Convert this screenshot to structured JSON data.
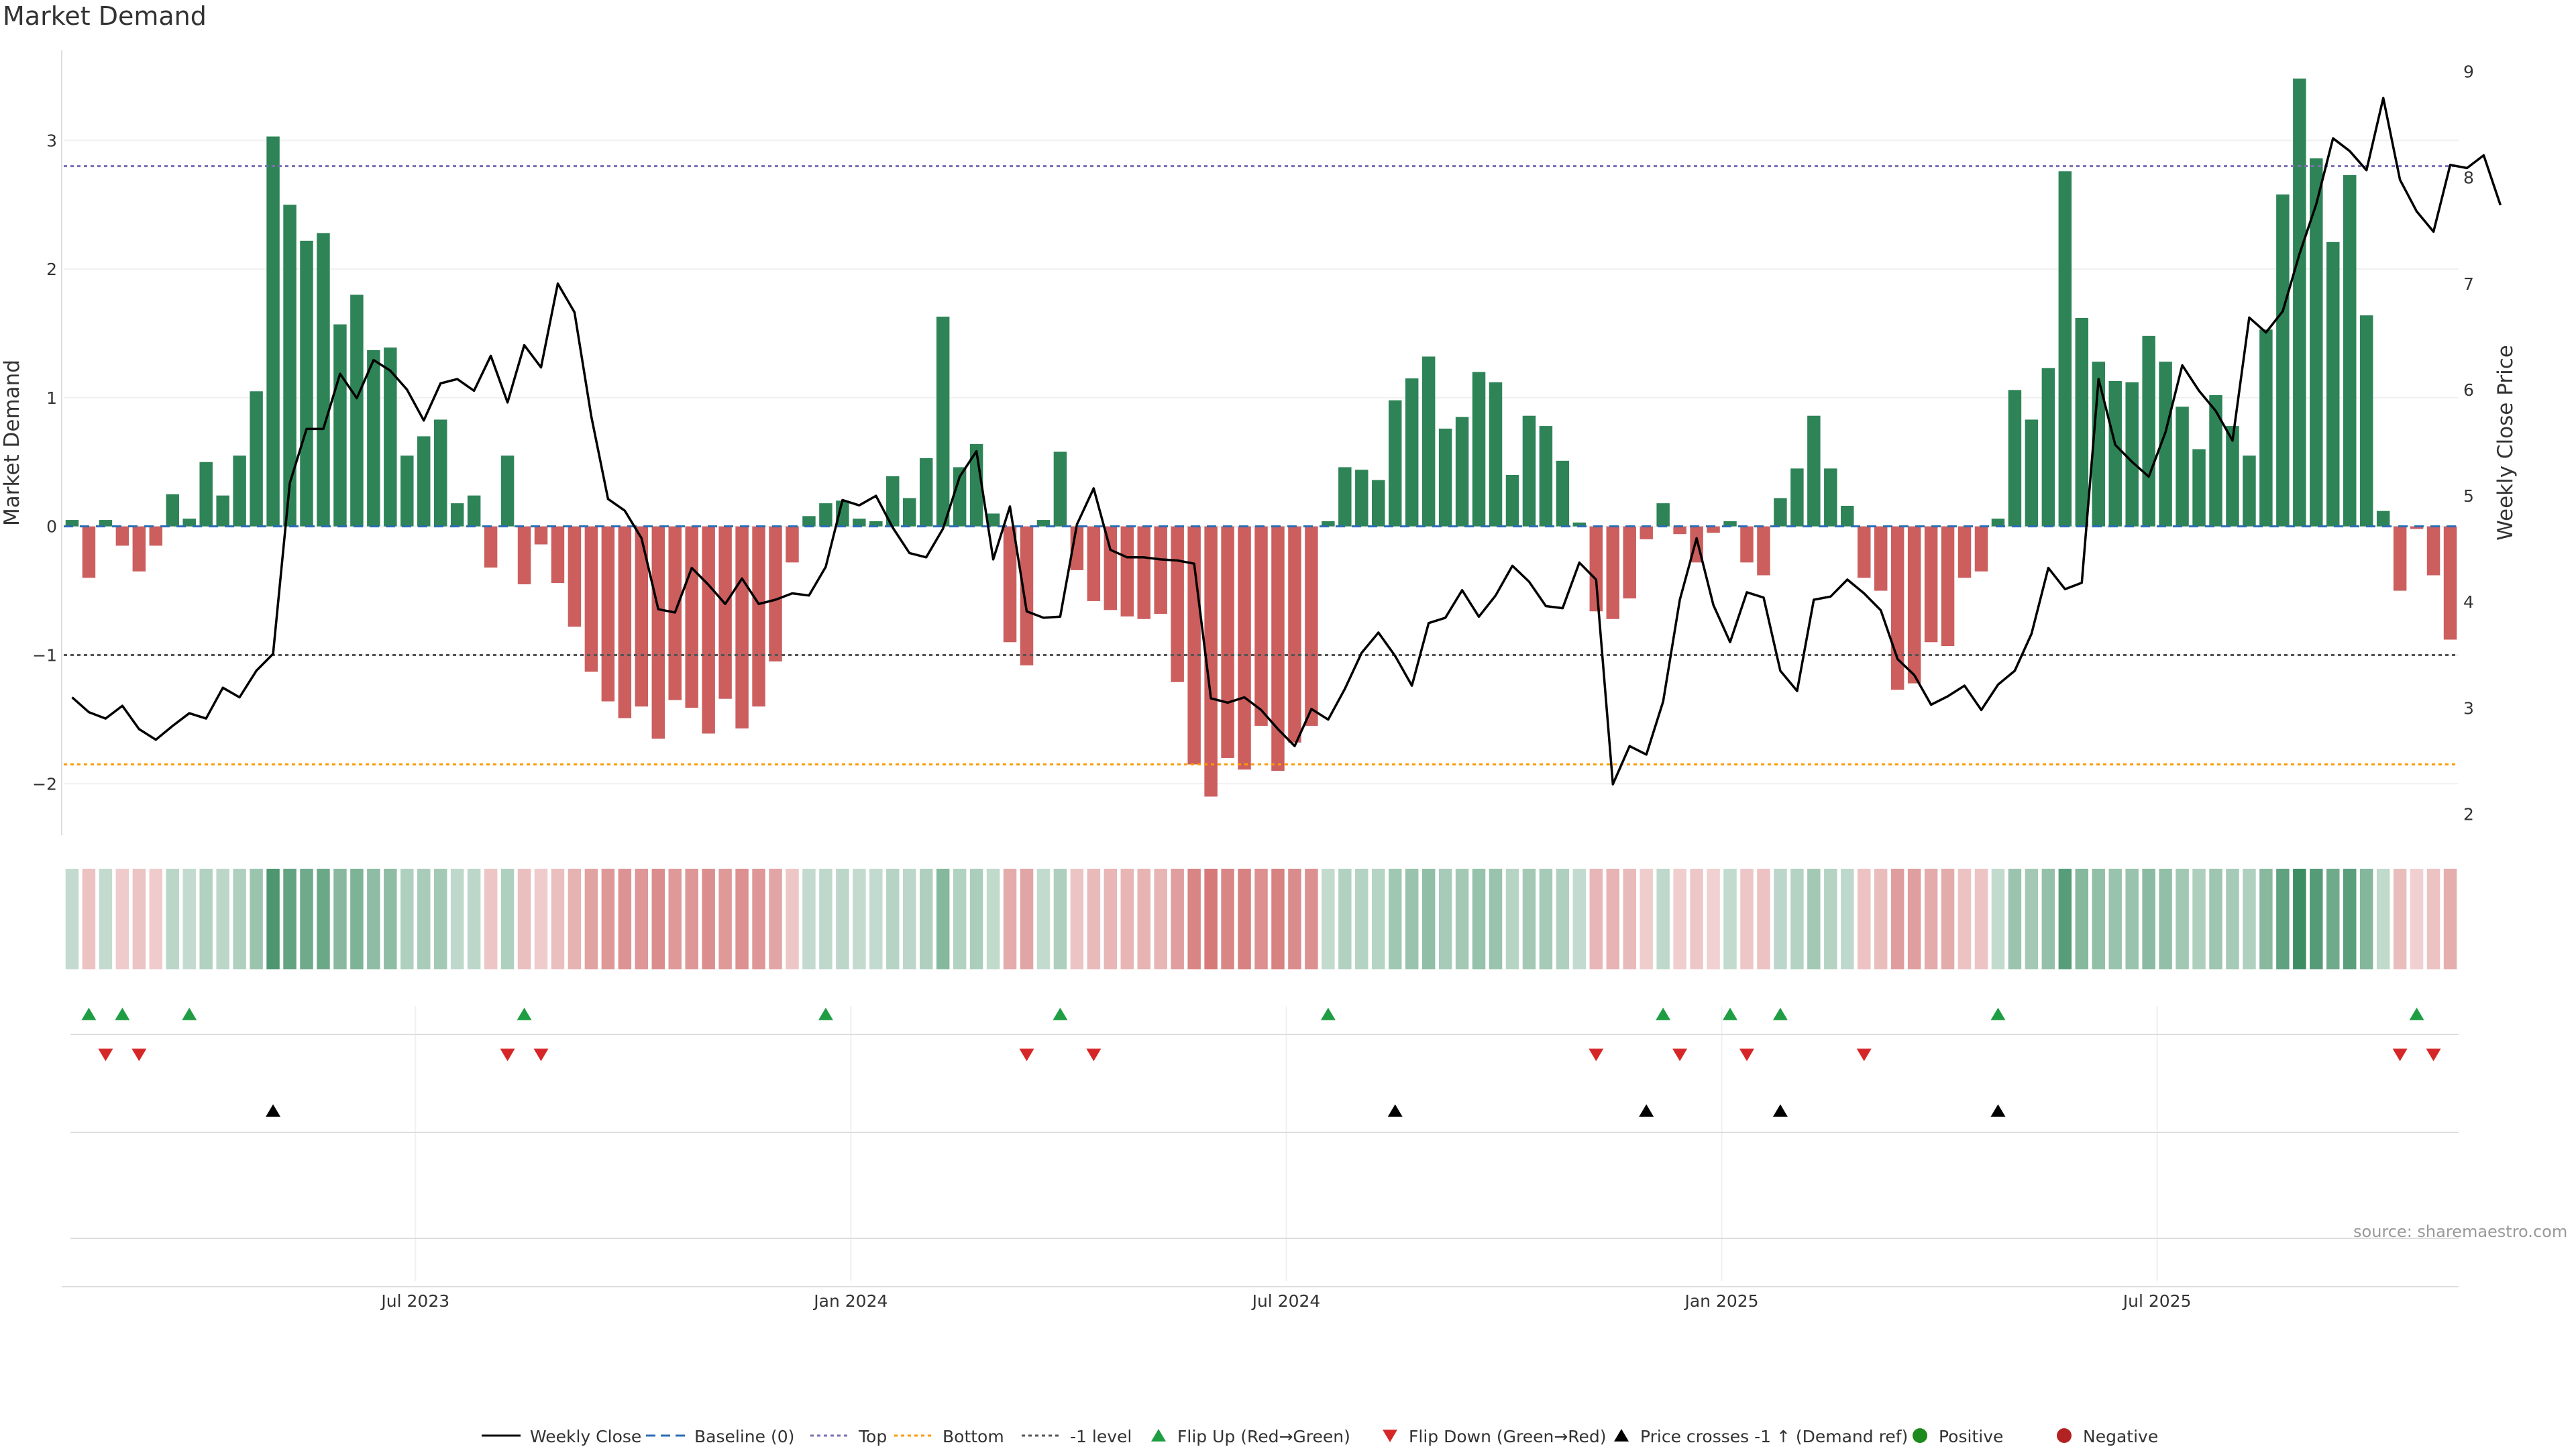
{
  "chart_data": {
    "type": "bar",
    "title": "Market Demand",
    "source": "source: sharemaestro.com",
    "ylabel": "Market Demand",
    "y2label": "Weekly Close Price",
    "ylim": [
      -2.4,
      3.7
    ],
    "y2lim": [
      1.8,
      9.2
    ],
    "yticks": [
      "3",
      "2",
      "1",
      "0",
      "−1",
      "−2"
    ],
    "y2ticks": [
      "9",
      "8",
      "7",
      "6",
      "5",
      "4",
      "3",
      "2"
    ],
    "xticks": [
      "Jul 2023",
      "Jan 2024",
      "Jul 2024",
      "Jan 2025",
      "Jul 2025"
    ],
    "xtick_positions_week": [
      21,
      47,
      73,
      99,
      125
    ],
    "reference_levels": {
      "top": 2.8,
      "bottom": -1.85,
      "minus_one": -1.0,
      "baseline": 0
    },
    "demand": [
      0.05,
      -0.4,
      0.05,
      -0.15,
      -0.35,
      -0.15,
      0.25,
      0.06,
      0.5,
      0.24,
      0.55,
      1.05,
      3.03,
      2.5,
      2.22,
      2.28,
      1.57,
      1.8,
      1.37,
      1.39,
      0.55,
      0.7,
      0.83,
      0.18,
      0.24,
      -0.32,
      0.55,
      -0.45,
      -0.14,
      -0.44,
      -0.78,
      -1.13,
      -1.36,
      -1.49,
      -1.4,
      -1.65,
      -1.35,
      -1.41,
      -1.61,
      -1.34,
      -1.57,
      -1.4,
      -1.05,
      -0.28,
      0.08,
      0.18,
      0.2,
      0.06,
      0.04,
      0.39,
      0.22,
      0.53,
      1.63,
      0.46,
      0.64,
      0.1,
      -0.9,
      -1.08,
      0.05,
      0.58,
      -0.34,
      -0.58,
      -0.65,
      -0.7,
      -0.72,
      -0.68,
      -1.21,
      -1.85,
      -2.1,
      -1.8,
      -1.89,
      -1.55,
      -1.9,
      -1.68,
      -1.55,
      0.04,
      0.46,
      0.44,
      0.36,
      0.98,
      1.15,
      1.32,
      0.76,
      0.85,
      1.2,
      1.12,
      0.4,
      0.86,
      0.78,
      0.51,
      0.03,
      -0.66,
      -0.72,
      -0.56,
      -0.1,
      0.18,
      -0.06,
      -0.28,
      -0.05,
      0.04,
      -0.28,
      -0.38,
      0.22,
      0.45,
      0.86,
      0.45,
      0.16,
      -0.4,
      -0.5,
      -1.27,
      -1.22,
      -0.9,
      -0.93,
      -0.4,
      -0.35,
      0.06,
      1.06,
      0.83,
      1.23,
      2.76,
      1.62,
      1.28,
      1.13,
      1.12,
      1.48,
      1.28,
      0.93,
      0.6,
      1.02,
      0.78,
      0.55,
      1.53,
      2.58,
      3.48,
      2.86,
      2.21,
      2.73,
      1.64,
      0.12,
      -0.5,
      -0.02,
      -0.38,
      -0.88
    ],
    "weekly_close": [
      3.1,
      2.96,
      2.9,
      3.02,
      2.8,
      2.7,
      2.83,
      2.95,
      2.9,
      3.19,
      3.1,
      3.35,
      3.51,
      5.12,
      5.63,
      5.63,
      6.15,
      5.92,
      6.28,
      6.18,
      6.0,
      5.71,
      6.06,
      6.1,
      5.99,
      6.32,
      5.88,
      6.42,
      6.21,
      7.0,
      6.73,
      5.75,
      4.97,
      4.86,
      4.6,
      3.93,
      3.9,
      4.32,
      4.16,
      3.98,
      4.22,
      3.98,
      4.02,
      4.08,
      4.06,
      4.33,
      4.96,
      4.91,
      5.0,
      4.7,
      4.46,
      4.42,
      4.69,
      5.18,
      5.42,
      4.4,
      4.9,
      3.91,
      3.85,
      3.86,
      4.73,
      5.07,
      4.49,
      4.42,
      4.42,
      4.4,
      4.39,
      4.36,
      3.09,
      3.05,
      3.1,
      2.98,
      2.8,
      2.64,
      2.99,
      2.89,
      3.18,
      3.52,
      3.71,
      3.49,
      3.21,
      3.8,
      3.85,
      4.11,
      3.86,
      4.06,
      4.34,
      4.19,
      3.96,
      3.94,
      4.37,
      4.21,
      2.28,
      2.64,
      2.56,
      3.06,
      4.02,
      4.6,
      3.97,
      3.62,
      4.09,
      4.04,
      3.35,
      3.16,
      4.02,
      4.05,
      4.21,
      4.08,
      3.92,
      3.46,
      3.31,
      3.03,
      3.11,
      3.21,
      2.98,
      3.22,
      3.35,
      3.7,
      4.32,
      4.12,
      4.18,
      6.1,
      5.48,
      5.32,
      5.18,
      5.6,
      6.23,
      5.99,
      5.8,
      5.52,
      6.68,
      6.54,
      6.74,
      7.28,
      7.75,
      8.37,
      8.25,
      8.07,
      8.75,
      7.98,
      7.68,
      7.49,
      8.12,
      8.09,
      8.21,
      7.74
    ],
    "flip_up_weeks": [
      1,
      3,
      7,
      27,
      45,
      59,
      75,
      95,
      99,
      102,
      115,
      140
    ],
    "flip_down_weeks": [
      2,
      4,
      26,
      28,
      57,
      61,
      91,
      96,
      100,
      107,
      139,
      141
    ],
    "price_cross_weeks": [
      12,
      79,
      94,
      102,
      115
    ],
    "colors": {
      "positive": "#2e8457",
      "negative": "#cc5e5e",
      "close_line": "#000000",
      "top_line": "#7b6fb2",
      "bottom_line": "#ff9900",
      "level_line": "#555555",
      "baseline_line": "#2d6db5",
      "flip_up": "#1f9d42",
      "flip_down": "#d62728",
      "cross": "#000000",
      "positive_dot": "#1c8a1c",
      "negative_dot": "#b22222"
    },
    "legend": [
      {
        "label": "Weekly Close",
        "kind": "line",
        "style": "solid",
        "color": "#000000"
      },
      {
        "label": "Baseline (0)",
        "kind": "line",
        "style": "dashed",
        "color": "#2d6db5"
      },
      {
        "label": "Top",
        "kind": "line",
        "style": "dotted",
        "color": "#7b6fb2"
      },
      {
        "label": "Bottom",
        "kind": "line",
        "style": "dotted",
        "color": "#ff9900"
      },
      {
        "label": "-1 level",
        "kind": "line",
        "style": "dotted",
        "color": "#555555"
      },
      {
        "label": "Flip Up (Red→Green)",
        "kind": "tri-up",
        "color": "#1f9d42"
      },
      {
        "label": "Flip Down (Green→Red)",
        "kind": "tri-down",
        "color": "#d62728"
      },
      {
        "label": "Price crosses -1 ↑ (Demand ref)",
        "kind": "tri-up",
        "color": "#000000"
      },
      {
        "label": "Positive",
        "kind": "dot",
        "color": "#1c8a1c"
      },
      {
        "label": "Negative",
        "kind": "dot",
        "color": "#b22222"
      }
    ]
  }
}
